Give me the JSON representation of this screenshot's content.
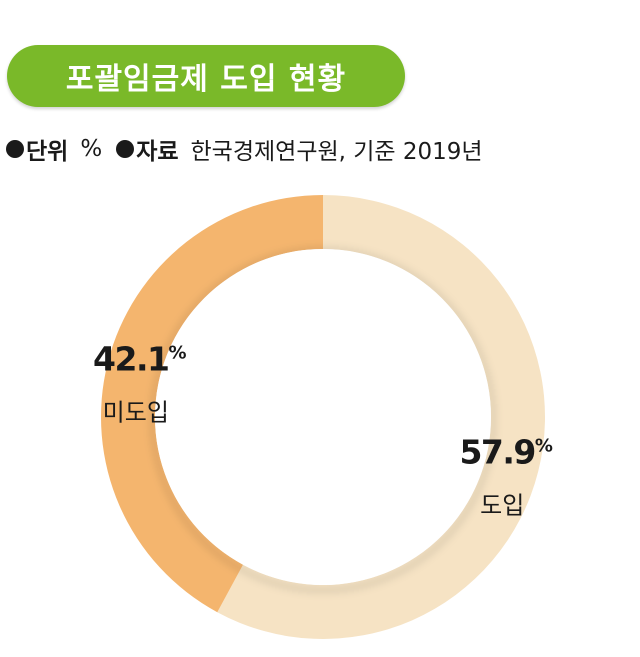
{
  "header": {
    "title": "포괄임금제 도입 현황",
    "unit_key": "단위",
    "unit_value": "%",
    "source_key": "자료",
    "source_value": "한국경제연구원, 기준  2019년"
  },
  "colors": {
    "title_bg": "#7ab929",
    "introduced": "#f6e3c4",
    "not_introduced": "#f4b56e"
  },
  "chart_data": {
    "type": "pie",
    "style": "donut",
    "unit": "%",
    "slices": [
      {
        "label": "도입",
        "value": 57.9,
        "color": "#f6e3c4"
      },
      {
        "label": "미도입",
        "value": 42.1,
        "color": "#f4b56e"
      }
    ]
  }
}
